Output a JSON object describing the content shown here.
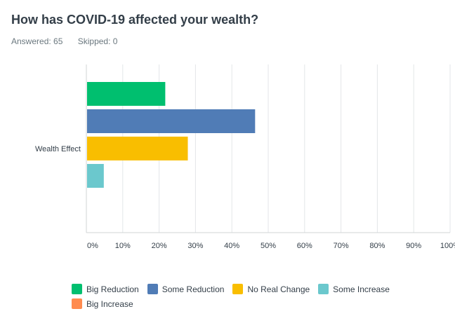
{
  "question": {
    "title": "How has COVID-19 affected your wealth?",
    "answered_text": "Answered: 65",
    "skipped_text": "Skipped: 0"
  },
  "chart_data": {
    "type": "bar",
    "orientation": "horizontal",
    "categories": [
      "Wealth Effect"
    ],
    "series": [
      {
        "name": "Big Reduction",
        "values": [
          21.5
        ],
        "color": "#00bf6f"
      },
      {
        "name": "Some Reduction",
        "values": [
          46.2
        ],
        "color": "#507cb6"
      },
      {
        "name": "No Real Change",
        "values": [
          27.7
        ],
        "color": "#f9be00"
      },
      {
        "name": "Some Increase",
        "values": [
          4.6
        ],
        "color": "#6bc8cd"
      },
      {
        "name": "Big Increase",
        "values": [
          0
        ],
        "color": "#ff8b4f"
      }
    ],
    "x_ticks": [
      "0%",
      "10%",
      "20%",
      "30%",
      "40%",
      "50%",
      "60%",
      "70%",
      "80%",
      "90%",
      "100%"
    ],
    "xlim": [
      0,
      100
    ],
    "grid": true,
    "legend_position": "bottom"
  }
}
